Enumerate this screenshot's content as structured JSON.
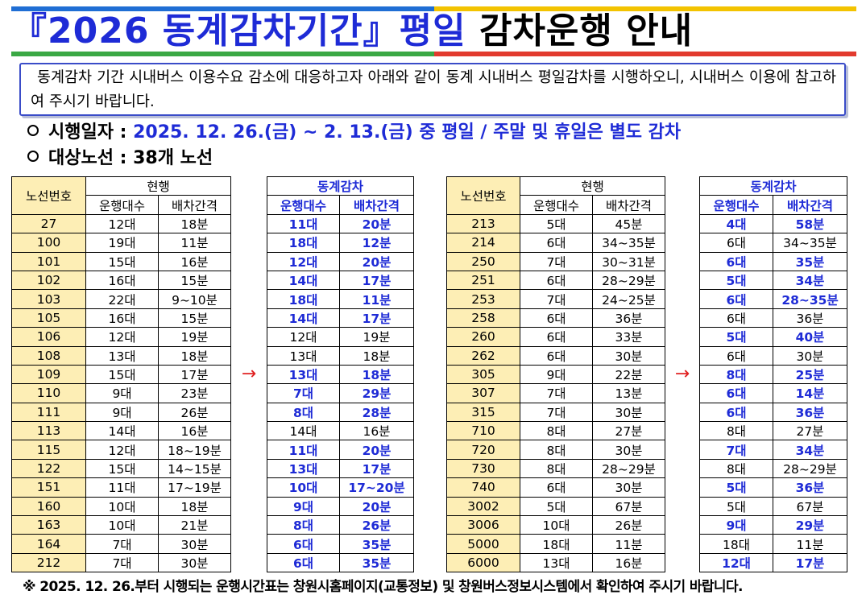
{
  "colors": {
    "title_blue": "#1e2bd6",
    "bar_blue": "#1f6ed4",
    "bar_yellow": "#f3c300",
    "bar_green": "#3aa844",
    "bar_red": "#e23a2e",
    "route_bg": "#fdeeb5",
    "arrow_red": "#e02020"
  },
  "title": {
    "part1": "『2026 동계감차기간』",
    "part2": "평일",
    "part3": " 감차운행 안내"
  },
  "notice": "동계감차 기간 시내버스 이용수요 감소에 대응하고자 아래와 같이 동계 시내버스 평일감차를 시행하오니, 시내버스 이용에 참고하여 주시기 바랍니다.",
  "info": {
    "date_label": "시행일자 : ",
    "date_value": "2025. 12. 26.(금) ~ 2. 13.(금) 중 평일 / 주말 및 휴일은 별도 감차",
    "routes_label": "대상노선 : ",
    "routes_value": "38개 노선"
  },
  "table_headers": {
    "route_no": "노선번호",
    "current": "현행",
    "winter": "동계감차",
    "vehicles": "운행대수",
    "interval": "배차간격",
    "arrow": "→"
  },
  "left_rows": [
    {
      "route": "27",
      "cur_v": "12대",
      "cur_i": "18분",
      "new_v": "11대",
      "new_i": "20분",
      "hv": true,
      "hi": true
    },
    {
      "route": "100",
      "cur_v": "19대",
      "cur_i": "11분",
      "new_v": "18대",
      "new_i": "12분",
      "hv": true,
      "hi": true
    },
    {
      "route": "101",
      "cur_v": "15대",
      "cur_i": "16분",
      "new_v": "12대",
      "new_i": "20분",
      "hv": true,
      "hi": true
    },
    {
      "route": "102",
      "cur_v": "16대",
      "cur_i": "15분",
      "new_v": "14대",
      "new_i": "17분",
      "hv": true,
      "hi": true
    },
    {
      "route": "103",
      "cur_v": "22대",
      "cur_i": "9~10분",
      "new_v": "18대",
      "new_i": "11분",
      "hv": true,
      "hi": true
    },
    {
      "route": "105",
      "cur_v": "16대",
      "cur_i": "15분",
      "new_v": "14대",
      "new_i": "17분",
      "hv": true,
      "hi": true
    },
    {
      "route": "106",
      "cur_v": "12대",
      "cur_i": "19분",
      "new_v": "12대",
      "new_i": "19분",
      "hv": false,
      "hi": false
    },
    {
      "route": "108",
      "cur_v": "13대",
      "cur_i": "18분",
      "new_v": "13대",
      "new_i": "18분",
      "hv": false,
      "hi": false
    },
    {
      "route": "109",
      "cur_v": "15대",
      "cur_i": "17분",
      "new_v": "13대",
      "new_i": "18분",
      "hv": true,
      "hi": true
    },
    {
      "route": "110",
      "cur_v": "9대",
      "cur_i": "23분",
      "new_v": "7대",
      "new_i": "29분",
      "hv": true,
      "hi": true
    },
    {
      "route": "111",
      "cur_v": "9대",
      "cur_i": "26분",
      "new_v": "8대",
      "new_i": "28분",
      "hv": true,
      "hi": true
    },
    {
      "route": "113",
      "cur_v": "14대",
      "cur_i": "16분",
      "new_v": "14대",
      "new_i": "16분",
      "hv": false,
      "hi": false
    },
    {
      "route": "115",
      "cur_v": "12대",
      "cur_i": "18~19분",
      "new_v": "11대",
      "new_i": "20분",
      "hv": true,
      "hi": true
    },
    {
      "route": "122",
      "cur_v": "15대",
      "cur_i": "14~15분",
      "new_v": "13대",
      "new_i": "17분",
      "hv": true,
      "hi": true
    },
    {
      "route": "151",
      "cur_v": "11대",
      "cur_i": "17~19분",
      "new_v": "10대",
      "new_i": "17~20분",
      "hv": true,
      "hi": true
    },
    {
      "route": "160",
      "cur_v": "10대",
      "cur_i": "18분",
      "new_v": "9대",
      "new_i": "20분",
      "hv": true,
      "hi": true
    },
    {
      "route": "163",
      "cur_v": "10대",
      "cur_i": "21분",
      "new_v": "8대",
      "new_i": "26분",
      "hv": true,
      "hi": true
    },
    {
      "route": "164",
      "cur_v": "7대",
      "cur_i": "30분",
      "new_v": "6대",
      "new_i": "35분",
      "hv": true,
      "hi": true
    },
    {
      "route": "212",
      "cur_v": "7대",
      "cur_i": "30분",
      "new_v": "6대",
      "new_i": "35분",
      "hv": true,
      "hi": true
    }
  ],
  "right_rows": [
    {
      "route": "213",
      "cur_v": "5대",
      "cur_i": "45분",
      "new_v": "4대",
      "new_i": "58분",
      "hv": true,
      "hi": true
    },
    {
      "route": "214",
      "cur_v": "6대",
      "cur_i": "34~35분",
      "new_v": "6대",
      "new_i": "34~35분",
      "hv": false,
      "hi": false
    },
    {
      "route": "250",
      "cur_v": "7대",
      "cur_i": "30~31분",
      "new_v": "6대",
      "new_i": "35분",
      "hv": true,
      "hi": true
    },
    {
      "route": "251",
      "cur_v": "6대",
      "cur_i": "28~29분",
      "new_v": "5대",
      "new_i": "34분",
      "hv": true,
      "hi": true
    },
    {
      "route": "253",
      "cur_v": "7대",
      "cur_i": "24~25분",
      "new_v": "6대",
      "new_i": "28~35분",
      "hv": true,
      "hi": true
    },
    {
      "route": "258",
      "cur_v": "6대",
      "cur_i": "36분",
      "new_v": "6대",
      "new_i": "36분",
      "hv": false,
      "hi": false
    },
    {
      "route": "260",
      "cur_v": "6대",
      "cur_i": "33분",
      "new_v": "5대",
      "new_i": "40분",
      "hv": true,
      "hi": true
    },
    {
      "route": "262",
      "cur_v": "6대",
      "cur_i": "30분",
      "new_v": "6대",
      "new_i": "30분",
      "hv": false,
      "hi": false
    },
    {
      "route": "305",
      "cur_v": "9대",
      "cur_i": "22분",
      "new_v": "8대",
      "new_i": "25분",
      "hv": true,
      "hi": true
    },
    {
      "route": "307",
      "cur_v": "7대",
      "cur_i": "13분",
      "new_v": "6대",
      "new_i": "14분",
      "hv": true,
      "hi": true
    },
    {
      "route": "315",
      "cur_v": "7대",
      "cur_i": "30분",
      "new_v": "6대",
      "new_i": "36분",
      "hv": true,
      "hi": true
    },
    {
      "route": "710",
      "cur_v": "8대",
      "cur_i": "27분",
      "new_v": "8대",
      "new_i": "27분",
      "hv": false,
      "hi": false
    },
    {
      "route": "720",
      "cur_v": "8대",
      "cur_i": "30분",
      "new_v": "7대",
      "new_i": "34분",
      "hv": true,
      "hi": true
    },
    {
      "route": "730",
      "cur_v": "8대",
      "cur_i": "28~29분",
      "new_v": "8대",
      "new_i": "28~29분",
      "hv": false,
      "hi": false
    },
    {
      "route": "740",
      "cur_v": "6대",
      "cur_i": "30분",
      "new_v": "5대",
      "new_i": "36분",
      "hv": true,
      "hi": true
    },
    {
      "route": "3002",
      "cur_v": "5대",
      "cur_i": "67분",
      "new_v": "5대",
      "new_i": "67분",
      "hv": false,
      "hi": false
    },
    {
      "route": "3006",
      "cur_v": "10대",
      "cur_i": "26분",
      "new_v": "9대",
      "new_i": "29분",
      "hv": true,
      "hi": true
    },
    {
      "route": "5000",
      "cur_v": "18대",
      "cur_i": "11분",
      "new_v": "18대",
      "new_i": "11분",
      "hv": false,
      "hi": false
    },
    {
      "route": "6000",
      "cur_v": "13대",
      "cur_i": "16분",
      "new_v": "12대",
      "new_i": "17분",
      "hv": true,
      "hi": true
    }
  ],
  "footnote": "※  2025. 12. 26.부터 시행되는 운행시간표는 창원시홈페이지(교통정보) 및 창원버스정보시스템에서 확인하여 주시기 바랍니다."
}
